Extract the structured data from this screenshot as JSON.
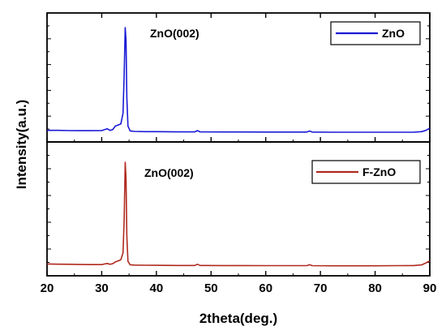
{
  "chart_data": [
    {
      "type": "line",
      "panel": "top",
      "xlim": [
        20,
        90
      ],
      "xticks": [
        20,
        30,
        40,
        50,
        60,
        70,
        80,
        90
      ],
      "ylabel": "Intensity(a.u.)",
      "y_tick_labels": false,
      "color": "#1a1ad6",
      "legend": {
        "label": "ZnO",
        "position": "top-right"
      },
      "annotation": {
        "text": "ZnO(002)",
        "x": 34.4
      },
      "series": [
        {
          "name": "ZnO",
          "x": [
            20,
            22,
            24,
            26,
            28,
            30,
            31,
            31.5,
            32,
            32.5,
            33,
            33.5,
            33.9,
            34.1,
            34.3,
            34.45,
            34.6,
            34.8,
            35.2,
            36,
            38,
            40,
            44,
            47,
            47.5,
            48,
            52,
            56,
            60,
            64,
            67.5,
            68,
            68.5,
            72,
            76,
            80,
            84,
            87,
            88.5,
            89.3,
            90
          ],
          "y": [
            4,
            4,
            3.8,
            3.7,
            3.7,
            3.8,
            5.5,
            4,
            4.6,
            8,
            9,
            10,
            20,
            55,
            100,
            88,
            35,
            8,
            3.5,
            3,
            2.8,
            2.8,
            2.6,
            2.6,
            3.8,
            2.6,
            2.5,
            2.5,
            2.4,
            2.4,
            2.4,
            3.4,
            2.4,
            2.3,
            2.3,
            2.3,
            2.3,
            2.3,
            2.8,
            4,
            6
          ]
        }
      ]
    },
    {
      "type": "line",
      "panel": "bottom",
      "xlim": [
        20,
        90
      ],
      "xticks": [
        20,
        30,
        40,
        50,
        60,
        70,
        80,
        90
      ],
      "xlabel": "2theta(deg.)",
      "y_tick_labels": false,
      "color": "#b02a1f",
      "legend": {
        "label": "F-ZnO",
        "position": "top-right"
      },
      "annotation": {
        "text": "ZnO(002)",
        "x": 34.4
      },
      "series": [
        {
          "name": "F-ZnO",
          "x": [
            20,
            22,
            24,
            26,
            28,
            30,
            31,
            31.5,
            32,
            32.5,
            33,
            33.5,
            33.9,
            34.1,
            34.3,
            34.45,
            34.6,
            34.8,
            35.2,
            36,
            38,
            40,
            44,
            47,
            47.5,
            48,
            52,
            56,
            60,
            64,
            67.5,
            68,
            68.5,
            72,
            76,
            80,
            84,
            87,
            88.5,
            89.3,
            90
          ],
          "y": [
            3.5,
            3.3,
            3.2,
            3.0,
            2.9,
            2.9,
            4,
            3.2,
            3.8,
            5.5,
            6.5,
            7.5,
            14,
            45,
            100,
            85,
            30,
            6,
            2.8,
            2.5,
            2.3,
            2.2,
            2.1,
            2.1,
            3.2,
            2.1,
            2.0,
            2.0,
            1.9,
            1.9,
            1.9,
            2.8,
            1.9,
            1.8,
            1.8,
            1.8,
            1.9,
            2.0,
            2.6,
            4.5,
            6.5
          ]
        }
      ]
    }
  ]
}
